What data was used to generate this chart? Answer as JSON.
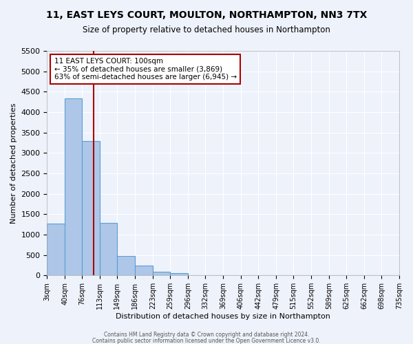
{
  "title": "11, EAST LEYS COURT, MOULTON, NORTHAMPTON, NN3 7TX",
  "subtitle": "Size of property relative to detached houses in Northampton",
  "xlabel": "Distribution of detached houses by size in Northampton",
  "ylabel": "Number of detached properties",
  "bar_color": "#aec6e8",
  "bar_edge_color": "#5a9fd4",
  "background_color": "#eef2fb",
  "grid_color": "#ffffff",
  "bins": [
    3,
    40,
    76,
    113,
    149,
    186,
    223,
    259,
    296,
    332,
    369,
    406,
    442,
    479,
    515,
    552,
    589,
    625,
    662,
    698,
    735
  ],
  "values": [
    1270,
    4330,
    3290,
    1290,
    480,
    240,
    90,
    55,
    0,
    0,
    0,
    0,
    0,
    0,
    0,
    0,
    0,
    0,
    0,
    0
  ],
  "tick_labels": [
    "3sqm",
    "40sqm",
    "76sqm",
    "113sqm",
    "149sqm",
    "186sqm",
    "223sqm",
    "259sqm",
    "296sqm",
    "332sqm",
    "369sqm",
    "406sqm",
    "442sqm",
    "479sqm",
    "515sqm",
    "552sqm",
    "589sqm",
    "625sqm",
    "662sqm",
    "698sqm",
    "735sqm"
  ],
  "vline_x": 100,
  "vline_color": "#aa0000",
  "annotation_title": "11 EAST LEYS COURT: 100sqm",
  "annotation_line1": "← 35% of detached houses are smaller (3,869)",
  "annotation_line2": "63% of semi-detached houses are larger (6,945) →",
  "annotation_box_color": "#ffffff",
  "annotation_box_edge_color": "#aa0000",
  "ylim": [
    0,
    5500
  ],
  "yticks": [
    0,
    500,
    1000,
    1500,
    2000,
    2500,
    3000,
    3500,
    4000,
    4500,
    5000,
    5500
  ],
  "footer1": "Contains HM Land Registry data © Crown copyright and database right 2024.",
  "footer2": "Contains public sector information licensed under the Open Government Licence v3.0."
}
